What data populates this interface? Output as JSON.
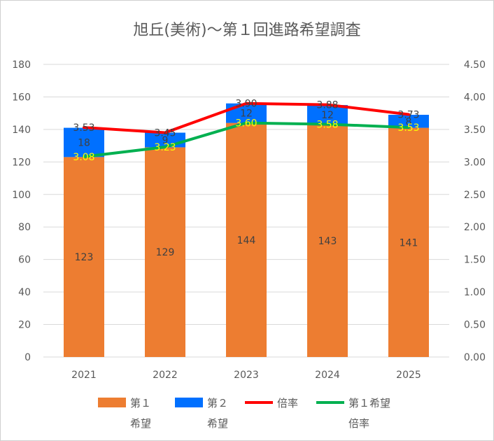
{
  "chart_data": {
    "type": "bar",
    "title": "旭丘(美術)～第１回進路希望調査",
    "categories": [
      "2021",
      "2022",
      "2023",
      "2024",
      "2025"
    ],
    "series": [
      {
        "name": "第１\n希望",
        "kind": "bar",
        "axis": "left",
        "color": "#ed7d31",
        "values": [
          123,
          129,
          144,
          143,
          141
        ],
        "label_color": "#404040"
      },
      {
        "name": "第２\n希望",
        "kind": "bar",
        "axis": "left",
        "color": "#0070ff",
        "values": [
          18,
          9,
          12,
          12,
          8
        ],
        "label_color": "#404040"
      },
      {
        "name": "倍率",
        "kind": "line",
        "axis": "right",
        "color": "#ff0000",
        "values": [
          3.53,
          3.45,
          3.9,
          3.88,
          3.73
        ],
        "labels": [
          "3.53",
          "3.45",
          "3.90",
          "3.88",
          "3.73"
        ],
        "label_color": "#404040"
      },
      {
        "name": "第１希望\n倍率",
        "kind": "line",
        "axis": "right",
        "color": "#00b050",
        "values": [
          3.08,
          3.23,
          3.6,
          3.58,
          3.53
        ],
        "labels": [
          "3.08",
          "3.23",
          "3.60",
          "3.58",
          "3.53"
        ],
        "label_color": "#ffff00"
      }
    ],
    "y_left": {
      "min": 0,
      "max": 180,
      "step": 20,
      "ticks": [
        "0",
        "20",
        "40",
        "60",
        "80",
        "100",
        "120",
        "140",
        "160",
        "180"
      ]
    },
    "y_right": {
      "min": 0,
      "max": 4.5,
      "step": 0.5,
      "ticks": [
        "0.00",
        "0.50",
        "1.00",
        "1.50",
        "2.00",
        "2.50",
        "3.00",
        "3.50",
        "4.00",
        "4.50"
      ]
    },
    "grid": true,
    "legend": "bottom"
  }
}
